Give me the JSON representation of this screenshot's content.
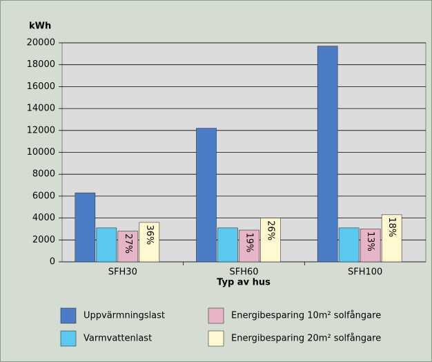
{
  "chart_data": {
    "type": "bar",
    "ylabel": "kWh",
    "xlabel": "Typ av hus",
    "categories": [
      "SFH30",
      "SFH60",
      "SFH100"
    ],
    "series": [
      {
        "name": "Uppvärmningslast",
        "color": "#4a7cc8",
        "values": [
          6300,
          12200,
          19700
        ]
      },
      {
        "name": "Varmvattenlast",
        "color": "#5bc8f0",
        "values": [
          3100,
          3100,
          3100
        ]
      },
      {
        "name": "Energibesparing 10m² solfångare",
        "color": "#e8b4c8",
        "values": [
          2800,
          2900,
          3000
        ],
        "annotations": [
          "27%",
          "19%",
          "13%"
        ]
      },
      {
        "name": "Energibesparing 20m² solfångare",
        "color": "#fff8d0",
        "values": [
          3600,
          4000,
          4300
        ],
        "annotations": [
          "36%",
          "26%",
          "18%"
        ]
      }
    ],
    "ylim": [
      0,
      20000
    ],
    "yticks": [
      0,
      2000,
      4000,
      6000,
      8000,
      10000,
      12000,
      14000,
      16000,
      18000,
      20000
    ],
    "grid": true
  }
}
